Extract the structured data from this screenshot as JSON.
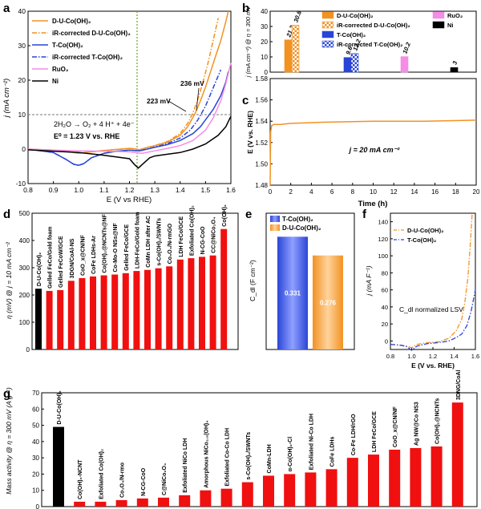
{
  "colors": {
    "duco": "#f29222",
    "tco": "#2a45d6",
    "ruo2": "#f58ce6",
    "ni": "#000000",
    "red": "#f01010",
    "dash": "#7a7a7a",
    "green": "#6aa121"
  },
  "chart_data": [
    {
      "panel": "a",
      "type": "line",
      "xlabel": "E (V vs RHE)",
      "ylabel": "j (mA cm⁻²)",
      "xlim": [
        0.8,
        1.6
      ],
      "ylim": [
        -10,
        40
      ],
      "xticks": [
        "0.8",
        "0.9",
        "1.0",
        "1.1",
        "1.2",
        "1.3",
        "1.4",
        "1.5",
        "1.6"
      ],
      "yticks": [
        "-10",
        "0",
        "10",
        "20",
        "30",
        "40"
      ],
      "reference_line_y": 10,
      "reference_line_x": 1.23,
      "annotations": [
        "236 mV",
        "223 mV"
      ],
      "reaction": "2H₂O → O₂ + 4 H⁺ + 4e⁻",
      "potential": "E⁰ = 1.23 V vs. RHE",
      "series": [
        {
          "name": "D-U-Co(OH)₂",
          "style": "solid",
          "color": "#f29222",
          "x": [
            0.8,
            0.9,
            0.95,
            1.0,
            1.05,
            1.1,
            1.15,
            1.2,
            1.22,
            1.24,
            1.27,
            1.3,
            1.35,
            1.4,
            1.43,
            1.46,
            1.48,
            1.5,
            1.52,
            1.54,
            1.56,
            1.58,
            1.59
          ],
          "y": [
            0,
            -0.3,
            -0.6,
            -1.2,
            -0.8,
            -0.4,
            -0.1,
            0.2,
            0.1,
            -0.2,
            0.5,
            1.0,
            2.0,
            4.0,
            6.5,
            10.5,
            14,
            18,
            22.5,
            27,
            31.5,
            37,
            40
          ]
        },
        {
          "name": "iR-corrected D-U-Co(OH)₂",
          "style": "dashdot",
          "color": "#f29222",
          "x": [
            0.8,
            0.9,
            0.95,
            1.0,
            1.05,
            1.1,
            1.15,
            1.2,
            1.22,
            1.24,
            1.27,
            1.3,
            1.35,
            1.4,
            1.43,
            1.45,
            1.47,
            1.49,
            1.51,
            1.53,
            1.55
          ],
          "y": [
            0,
            -0.3,
            -0.6,
            -1.2,
            -0.8,
            -0.4,
            -0.1,
            0.2,
            0.1,
            -0.2,
            0.5,
            1.0,
            2.2,
            4.5,
            7.5,
            10.5,
            14.5,
            19.5,
            25,
            31.5,
            38
          ]
        },
        {
          "name": "T-Co(OH)₂",
          "style": "solid",
          "color": "#2a45d6",
          "x": [
            0.8,
            0.9,
            0.95,
            0.98,
            1.0,
            1.02,
            1.05,
            1.1,
            1.15,
            1.2,
            1.24,
            1.3,
            1.35,
            1.4,
            1.45,
            1.48,
            1.5,
            1.53,
            1.56,
            1.58,
            1.59
          ],
          "y": [
            0,
            -1,
            -3,
            -4.4,
            -4.7,
            -4.2,
            -2.5,
            -1.2,
            -0.6,
            -0.3,
            -0.5,
            0.5,
            1.3,
            2.5,
            4.5,
            6.5,
            8.5,
            11.5,
            15.5,
            19.5,
            22.5
          ]
        },
        {
          "name": "iR-corrected T-Co(OH)₂",
          "style": "dashdot",
          "color": "#2a45d6",
          "x": [
            0.8,
            0.9,
            0.95,
            0.98,
            1.0,
            1.02,
            1.05,
            1.1,
            1.15,
            1.2,
            1.24,
            1.3,
            1.35,
            1.4,
            1.44,
            1.47,
            1.5,
            1.52,
            1.54,
            1.56
          ],
          "y": [
            0,
            -1,
            -3,
            -4.4,
            -4.7,
            -4.2,
            -2.5,
            -1.2,
            -0.6,
            -0.3,
            -0.5,
            0.6,
            1.6,
            3.2,
            5.5,
            8.5,
            12.5,
            16,
            19.5,
            23
          ]
        },
        {
          "name": "RuO₂",
          "style": "solid",
          "color": "#f58ce6",
          "x": [
            0.8,
            0.9,
            1.0,
            1.1,
            1.2,
            1.25,
            1.3,
            1.35,
            1.4,
            1.45,
            1.5,
            1.53,
            1.56,
            1.58,
            1.6
          ],
          "y": [
            0,
            -0.3,
            -0.5,
            -0.6,
            -0.8,
            -1.2,
            -0.5,
            0.2,
            1.0,
            2.5,
            5.5,
            9,
            14,
            19,
            25
          ]
        },
        {
          "name": "Ni",
          "style": "solid",
          "color": "#000000",
          "x": [
            0.8,
            0.9,
            1.0,
            1.1,
            1.2,
            1.22,
            1.235,
            1.25,
            1.28,
            1.3,
            1.35,
            1.4,
            1.45,
            1.5,
            1.55,
            1.58,
            1.6
          ],
          "y": [
            -0.2,
            -0.6,
            -1.0,
            -1.8,
            -2.8,
            -4.5,
            -5.5,
            -4.5,
            -2.5,
            -2.0,
            -1.5,
            -1.0,
            0,
            1.5,
            4,
            6.5,
            9.5
          ]
        }
      ]
    },
    {
      "panel": "b",
      "type": "bar",
      "ylabel": "j (mA cm⁻²) @ η = 300 mV",
      "ylim": [
        0,
        40
      ],
      "yticks": [
        "0",
        "10",
        "20",
        "30",
        "40"
      ],
      "bars": [
        {
          "name": "D-U-Co(OH)₂",
          "value": 21.2,
          "label": "21.2",
          "fill": "solid",
          "color": "#f29222"
        },
        {
          "name": "iR-corrected D-U-Co(OH)₂",
          "value": 30.8,
          "label": "30.8",
          "fill": "check",
          "color": "#f29222"
        },
        {
          "name": "T-Co(OH)₂",
          "value": 9.6,
          "label": "9.6",
          "fill": "solid",
          "color": "#2a45d6"
        },
        {
          "name": "iR-corrected T-Co(OH)₂",
          "value": 12.2,
          "label": "12.2",
          "fill": "check",
          "color": "#2a45d6"
        },
        {
          "name": "RuO₂",
          "value": 10.2,
          "label": "10.2",
          "fill": "solid",
          "color": "#f58ce6"
        },
        {
          "name": "Ni",
          "value": 3,
          "label": "3",
          "fill": "solid",
          "color": "#000000"
        }
      ]
    },
    {
      "panel": "c",
      "type": "line",
      "xlabel": "Time (h)",
      "ylabel": "E (V vs. RHE)",
      "xlim": [
        0,
        20
      ],
      "ylim": [
        1.48,
        1.58
      ],
      "xticks": [
        "0",
        "2",
        "4",
        "6",
        "8",
        "10",
        "12",
        "14",
        "16",
        "18",
        "20"
      ],
      "yticks": [
        "1.48",
        "1.50",
        "1.52",
        "1.54",
        "1.56",
        "1.58"
      ],
      "annotation": "j = 20 mA cm⁻²",
      "x": [
        0,
        0.05,
        0.15,
        0.4,
        1,
        2,
        5,
        10,
        15,
        20
      ],
      "y": [
        1.48,
        1.53,
        1.536,
        1.537,
        1.537,
        1.538,
        1.539,
        1.54,
        1.54,
        1.541
      ]
    },
    {
      "panel": "d",
      "type": "bar",
      "ylabel": "η (mV) @ j = 10 mA cm⁻²",
      "ylim": [
        0,
        500
      ],
      "yticks": [
        "0",
        "100",
        "200",
        "300",
        "400",
        "500"
      ],
      "categories": [
        "D-U-Co(OH)₂",
        "Gelled FeCo/Gold foam",
        "Gelled FeCoW/GCE",
        "3DGN/CoAl-NS",
        "CoO_x@CN/NF",
        "CoFe LDHs-Ar",
        "Co(OH)₂@NCNTs@NF",
        "Co-Mo-O NSs@NF",
        "Gelled FeCo/GCE",
        "LDH-FeCo/Gold foam",
        "CoMn LDH after AC",
        "s-Co(OH)₂/SWNTs",
        "Co₃O₄/N-rmGO",
        "LDH FeCo/GCE",
        "Exfoliated Co(OH)₂",
        "N-CG-CoO",
        "CC@NiCo₂O₄",
        "Co(OH)₂"
      ],
      "values": [
        223,
        215,
        218,
        252,
        262,
        268,
        272,
        275,
        280,
        288,
        292,
        298,
        305,
        330,
        335,
        340,
        345,
        442
      ]
    },
    {
      "panel": "e",
      "type": "bar",
      "ylabel": "C_dl (F cm⁻²)",
      "ylim": [
        0,
        0.4
      ],
      "categories": [
        "T-Co(OH)₂",
        "D-U-Co(OH)₂"
      ],
      "values": [
        0.331,
        0.276
      ],
      "labels": [
        "0.331",
        "0.276"
      ]
    },
    {
      "panel": "f",
      "type": "line",
      "xlabel": "E (V vs. RHE)",
      "ylabel": "j (mA F⁻¹)",
      "xlim": [
        0.8,
        1.6
      ],
      "ylim": [
        -10,
        150
      ],
      "xticks": [
        "0.8",
        "1.0",
        "1.2",
        "1.4",
        "1.6"
      ],
      "yticks": [
        "0",
        "20",
        "40",
        "60",
        "80",
        "100",
        "120",
        "140"
      ],
      "annotation": "C_dl normalized LSV",
      "series": [
        {
          "name": "D-U-Co(OH)₂",
          "style": "dashdot",
          "color": "#f29222",
          "x": [
            0.8,
            0.9,
            0.96,
            1.0,
            1.05,
            1.15,
            1.25,
            1.35,
            1.42,
            1.47,
            1.5,
            1.53,
            1.55,
            1.57
          ],
          "y": [
            -4,
            -5,
            -6,
            -8,
            -4,
            -2,
            -1,
            3,
            12,
            25,
            45,
            75,
            110,
            150
          ]
        },
        {
          "name": "T-Co(OH)₂",
          "style": "dashdot",
          "color": "#2a45d6",
          "x": [
            0.8,
            0.9,
            0.96,
            1.0,
            1.05,
            1.15,
            1.25,
            1.35,
            1.42,
            1.47,
            1.52,
            1.56,
            1.6
          ],
          "y": [
            -4,
            -5,
            -7,
            -11,
            -6,
            -3,
            -2,
            0,
            4,
            8,
            18,
            35,
            60
          ]
        }
      ]
    },
    {
      "panel": "g",
      "type": "bar",
      "ylabel": "Mass activity @ η = 300 mV (A g⁻¹)",
      "ylim": [
        0,
        70
      ],
      "yticks": [
        "0",
        "10",
        "20",
        "30",
        "40",
        "50",
        "60",
        "70"
      ],
      "categories": [
        "D-U-Co(OH)₂",
        "Co(OH)₂-NCNT",
        "Exfoliated Co(OH)₂",
        "Co₃O₄/N-rmo",
        "N-CG-CoO",
        "C@NiCo₂O₄",
        "Exfoliated NiCo LDH",
        "Amorphous NiCo₂.₅(OH)₄",
        "Exfoliated Co-Co LDH",
        "s-Co(OH)₂/SWNTs",
        "CoMn-LDH",
        "α-Co(OH)₂-Cl",
        "Exfoliated Ni-Co LDH",
        "CoFe LDHs",
        "Co-Fe LDH/rGO",
        "LDH FeCo/GCE",
        "CoO_x@CN/NF",
        "Ag NW@Co NS3",
        "Co(OH)₂@NCNTs",
        "3DNG/CoAl"
      ],
      "values": [
        49,
        3,
        3,
        4,
        5,
        5.5,
        7,
        10,
        11,
        15,
        19,
        20,
        21,
        23,
        30,
        32,
        35,
        36,
        37,
        64
      ]
    }
  ],
  "panel_letters": [
    "a",
    "b",
    "c",
    "d",
    "e",
    "f",
    "g"
  ]
}
